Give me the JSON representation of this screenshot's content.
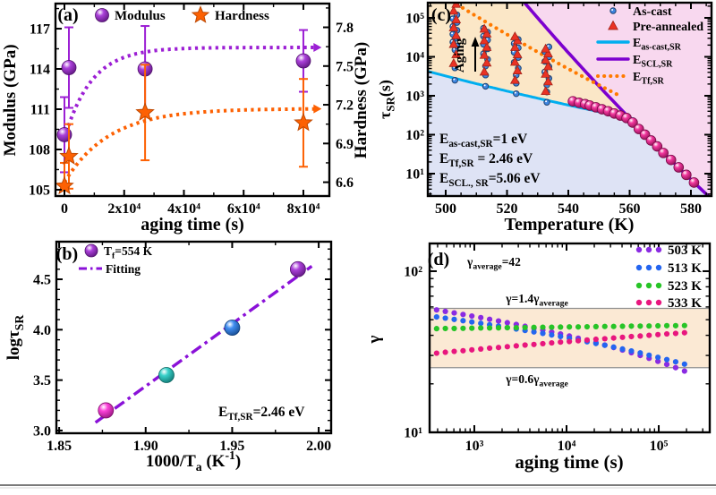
{
  "page": {
    "background": "#ffffff",
    "divider_color": "#7a7a7a"
  },
  "chart_data": [
    {
      "id": "a",
      "type": "scatter",
      "panel_label": "(a)",
      "xlabel": "aging time (s)",
      "ylabel_left": "Modulus (GPa)",
      "ylabel_right": "Hardness (GPa)",
      "xlim": [
        -2996,
        88700
      ],
      "ylim_left": [
        104.53,
        118.87
      ],
      "ylim_right": [
        6.493,
        7.984
      ],
      "x_ticks": [
        {
          "v": 0,
          "label": "0"
        },
        {
          "v": 20000,
          "label": "2x10⁴"
        },
        {
          "v": 40000,
          "label": "4x10⁴"
        },
        {
          "v": 60000,
          "label": "6x10⁴"
        },
        {
          "v": 80000,
          "label": "8x10⁴"
        }
      ],
      "x_minor_step": 10000,
      "y_ticks_left": [
        {
          "v": 105,
          "label": "105"
        },
        {
          "v": 108,
          "label": "108"
        },
        {
          "v": 111,
          "label": "111"
        },
        {
          "v": 114,
          "label": "114"
        },
        {
          "v": 117,
          "label": "117"
        }
      ],
      "y_minor_left": 1.5,
      "y_ticks_right": [
        {
          "v": 6.6,
          "label": "6.6"
        },
        {
          "v": 6.9,
          "label": "6.9"
        },
        {
          "v": 7.2,
          "label": "7.2"
        },
        {
          "v": 7.5,
          "label": "7.5"
        },
        {
          "v": 7.8,
          "label": "7.8"
        }
      ],
      "y_minor_right": 0.15,
      "series": [
        {
          "name": "Modulus",
          "marker": "sphere",
          "color": "#9c1fd4",
          "axis": "left",
          "points": [
            [
              0,
              109.1,
              2.8
            ],
            [
              1500,
              114.1,
              3.0
            ],
            [
              27000,
              114.0,
              3.2
            ],
            [
              80000,
              114.6,
              2.3
            ]
          ]
        },
        {
          "name": "Hardness",
          "marker": "star",
          "color": "#fd6103",
          "axis": "right",
          "points": [
            [
              0,
              6.57,
              0.18
            ],
            [
              1500,
              6.8,
              0.25
            ],
            [
              27000,
              7.14,
              0.37
            ],
            [
              80000,
              7.06,
              0.34
            ]
          ]
        }
      ],
      "fits": [
        {
          "axis": "left",
          "color": "#9c1fd4",
          "plateau": 115.6,
          "delta": 6.8,
          "tau": 9000,
          "t_end": 84000
        },
        {
          "axis": "right",
          "color": "#fd6103",
          "plateau": 7.17,
          "delta": 0.57,
          "tau": 15000,
          "t_end": 84000
        }
      ],
      "legend": [
        {
          "marker": "sphere",
          "color": "#9c1fd4",
          "label": "Modulus"
        },
        {
          "marker": "star",
          "color": "#fd6103",
          "label": "Hardness"
        }
      ]
    },
    {
      "id": "b",
      "type": "scatter",
      "panel_label": "(b)",
      "xlabel": "1000/T_{a} (K^{-1})",
      "ylabel": "logτ_{SR}",
      "xlim": [
        1.8484,
        2.0072
      ],
      "ylim": [
        2.973,
        4.873
      ],
      "x_ticks": [
        {
          "v": 1.85,
          "label": "1.85"
        },
        {
          "v": 1.9,
          "label": "1.90"
        },
        {
          "v": 1.95,
          "label": "1.95"
        },
        {
          "v": 2.0,
          "label": "2.00"
        }
      ],
      "x_minor_step": 0.025,
      "y_ticks": [
        {
          "v": 3.0,
          "label": "3.0"
        },
        {
          "v": 3.5,
          "label": "3.5"
        },
        {
          "v": 4.0,
          "label": "4.0"
        },
        {
          "v": 4.5,
          "label": "4.5"
        }
      ],
      "y_minor_step": 0.1,
      "points": [
        {
          "x": 1.877,
          "y": 3.2,
          "color": "#fb1ed2"
        },
        {
          "x": 1.912,
          "y": 3.55,
          "color": "#16c8c0"
        },
        {
          "x": 1.95,
          "y": 4.02,
          "color": "#1f7af0"
        },
        {
          "x": 1.988,
          "y": 4.6,
          "color": "#9c1fd4"
        }
      ],
      "fit_line": {
        "x1": 1.871,
        "y1": 3.08,
        "x2": 1.996,
        "y2": 4.63,
        "color": "#8a11d8"
      },
      "legend": [
        {
          "marker": "sphere",
          "color": "#9c1fd4",
          "label": "T_{f}=554 K"
        },
        {
          "marker": "dashdot",
          "color": "#8a11d8",
          "label": "Fitting"
        }
      ],
      "annotation": "E_{Tf,SR}=2.46 eV"
    },
    {
      "id": "c",
      "type": "scatter",
      "panel_label": "(c)",
      "xlabel": "Temperature (K)",
      "ylabel": "τ_{SR}(s)",
      "xlim": [
        494.16,
        586.72
      ],
      "ylog_lim": [
        0.425,
        5.39
      ],
      "x_ticks": [
        {
          "v": 500,
          "label": "500"
        },
        {
          "v": 520,
          "label": "520"
        },
        {
          "v": 540,
          "label": "540"
        },
        {
          "v": 560,
          "label": "560"
        },
        {
          "v": 580,
          "label": "580"
        }
      ],
      "x_minor_step": 5,
      "y_ticks": [
        {
          "e": 1,
          "label": "10¹"
        },
        {
          "e": 2,
          "label": "10²"
        },
        {
          "e": 3,
          "label": "10³"
        },
        {
          "e": 4,
          "label": "10⁴"
        },
        {
          "e": 5,
          "label": "10⁵"
        }
      ],
      "regions": {
        "orange": "#fbe7c7",
        "pink": "#f8d8ef",
        "lavender": "#dee3f5"
      },
      "lines": [
        {
          "name": "E_{as-cast,SR}",
          "color": "#00aeef",
          "E_eV": 1.0,
          "tau_ref": 2800,
          "T_ref": 503,
          "T_range": [
            494.16,
            561.5
          ],
          "width": 3,
          "dotted": false
        },
        {
          "name": "E_{SCL,SR}",
          "color": "#7c00cf",
          "E_eV": 5.06,
          "tau_ref": 5,
          "T_ref": 582,
          "T_range": [
            520,
            586.72
          ],
          "width": 3.6,
          "dotted": false
        },
        {
          "name": "E_{Tf,SR}",
          "color": "#ff7a00",
          "E_eV": 2.46,
          "tau_ref": 240000,
          "T_ref": 503,
          "T_range": [
            497,
            556
          ],
          "width": 4.2,
          "dotted": true
        }
      ],
      "as_cast": {
        "label": "As-cast",
        "color": "#3d85e0",
        "columns": {
          "503": [
            2500,
            5200,
            15000,
            19000,
            24000,
            30000,
            38000,
            48000,
            60000,
            76000,
            95000,
            120000
          ],
          "513": [
            1750,
            3400,
            5800,
            8600,
            12000,
            16000,
            21000,
            27000,
            34000,
            43000,
            54000
          ],
          "523": [
            1130,
            2100,
            3400,
            5100,
            7200,
            9600,
            13000,
            17000,
            22000,
            28000
          ],
          "533": [
            680,
            1250,
            1900,
            2800,
            4100,
            5600,
            7600,
            10000,
            13500,
            18000
          ]
        }
      },
      "pre_annealed": {
        "label": "Pre-annealed",
        "color": "#ea3224",
        "columns": {
          "503": [
            6800,
            11500,
            21000,
            35000,
            56000,
            90000,
            150000,
            225000
          ],
          "513": [
            4100,
            7000,
            11000,
            17500,
            26000,
            39000,
            52000
          ],
          "523": [
            2500,
            4400,
            7300,
            11500,
            17500,
            26000,
            33000
          ],
          "533": [
            1300,
            2300,
            3600,
            5600,
            8300,
            12000,
            16000
          ]
        }
      },
      "relaxation_points": {
        "color": "#f0148c",
        "points": [
          [
            541.5,
            720
          ],
          [
            543.5,
            660
          ],
          [
            545.5,
            610
          ],
          [
            547,
            560
          ],
          [
            549,
            505
          ],
          [
            551,
            450
          ],
          [
            553,
            400
          ],
          [
            555,
            350
          ],
          [
            557,
            310
          ],
          [
            559,
            268
          ],
          [
            561,
            205
          ],
          [
            563,
            140
          ],
          [
            565,
            100
          ],
          [
            567,
            71
          ],
          [
            569,
            50
          ],
          [
            571,
            34
          ],
          [
            573.5,
            22.5
          ],
          [
            576,
            14.5
          ],
          [
            578.5,
            9.3
          ],
          [
            581,
            5.9
          ]
        ]
      },
      "annotations": [
        "E_{as-cast,SR}=1 eV",
        "E_{Tf,SR} = 2.46 eV",
        "E_{SCL., SR}=5.06 eV"
      ],
      "aging_label": "Aging",
      "legend": [
        {
          "marker": "circle",
          "color": "#3d85e0",
          "label": "As-cast"
        },
        {
          "marker": "triangle",
          "color": "#ea3224",
          "label": "Pre-annealed"
        },
        {
          "marker": "line",
          "color": "#00aeef",
          "label": "E_{as-cast,SR}"
        },
        {
          "marker": "line",
          "color": "#7c00cf",
          "label": "E_{SCL,SR}"
        },
        {
          "marker": "dotline",
          "color": "#ff7a00",
          "label": "E_{Tf,SR}"
        }
      ],
      "activation_energy_eV": {
        "as_cast": 1.0,
        "Tf": 2.46,
        "SCL": 5.06
      }
    },
    {
      "id": "d",
      "type": "scatter",
      "panel_label": "(d)",
      "xlabel": "aging time (s)",
      "ylabel": "γ",
      "xlog_lim": [
        2.515,
        5.553
      ],
      "ylog_lim": [
        1.0,
        2.172
      ],
      "x_ticks": [
        {
          "e": 3,
          "label": "10³"
        },
        {
          "e": 4,
          "label": "10⁴"
        },
        {
          "e": 5,
          "label": "10⁵"
        }
      ],
      "y_ticks": [
        {
          "e": 1,
          "label": "10¹"
        },
        {
          "e": 2,
          "label": "10²"
        }
      ],
      "gamma_average": 42,
      "annotation": "γ_{average}=42",
      "band": {
        "low": 25.2,
        "high": 58.8,
        "fill": "#fbe9d4",
        "line_color": "#8f8f8f",
        "label_top": "γ=1.4γ_{average}",
        "label_bottom": "γ=0.6γ_{average}"
      },
      "t": [
        390,
        485,
        605,
        755,
        940,
        1175,
        1465,
        1830,
        2280,
        2850,
        3550,
        4430,
        5530,
        6900,
        8600,
        10730,
        13390,
        16700,
        20840,
        26000,
        32430,
        40460,
        50480,
        62980,
        78570,
        98010,
        122280,
        152540,
        190310
      ],
      "series": [
        {
          "label": "503 K",
          "color": "#8a2be2",
          "gamma": [
            57.5,
            56.3,
            55.1,
            53.9,
            52.7,
            51.5,
            50.3,
            49.1,
            47.9,
            46.7,
            45.5,
            44.3,
            43.1,
            41.9,
            40.8,
            39.6,
            38.4,
            37.2,
            36,
            34.8,
            33.6,
            32.4,
            31.2,
            30,
            28.8,
            27.6,
            26.4,
            25.2,
            24
          ]
        },
        {
          "label": "513 K",
          "color": "#2465f0",
          "gamma": [
            52,
            51.1,
            50.2,
            49.3,
            48.4,
            47.5,
            46.5,
            45.6,
            44.7,
            43.8,
            42.9,
            42,
            41.1,
            40.2,
            39.3,
            38.3,
            37.4,
            36.5,
            35.6,
            34.7,
            33.8,
            32.9,
            32,
            31.1,
            30.1,
            29.2,
            28.3,
            27.4,
            26.5
          ]
        },
        {
          "label": "523 K",
          "color": "#27c427",
          "gamma": [
            44,
            44.1,
            44.1,
            44.2,
            44.3,
            44.4,
            44.4,
            44.5,
            44.6,
            44.6,
            44.7,
            44.8,
            44.9,
            44.9,
            45,
            45.1,
            45.1,
            45.2,
            45.3,
            45.4,
            45.4,
            45.5,
            45.6,
            45.6,
            45.7,
            45.8,
            45.9,
            45.9,
            46
          ]
        },
        {
          "label": "533 K",
          "color": "#e8167e",
          "gamma": [
            31,
            31.4,
            31.8,
            32.1,
            32.5,
            32.9,
            33.3,
            33.6,
            34,
            34.4,
            34.8,
            35.1,
            35.5,
            35.9,
            36.3,
            36.6,
            37,
            37.4,
            37.8,
            38.1,
            38.5,
            38.9,
            39.3,
            39.6,
            40,
            40.4,
            40.8,
            41.1,
            41.5
          ]
        }
      ]
    }
  ]
}
